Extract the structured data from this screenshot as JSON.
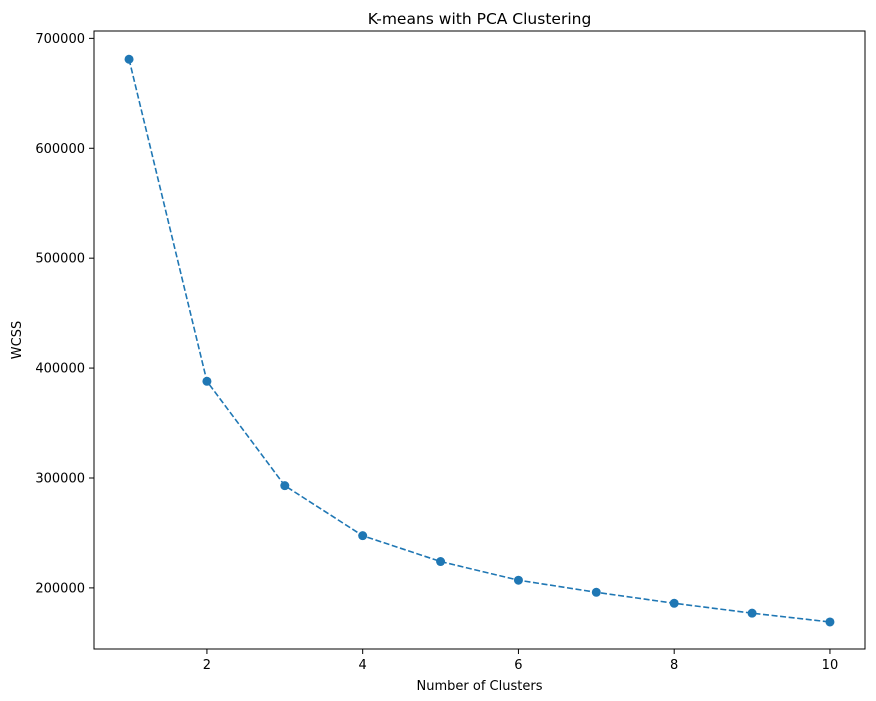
{
  "chart_data": {
    "type": "line",
    "title": "K-means with PCA Clustering",
    "xlabel": "Number of Clusters",
    "ylabel": "WCSS",
    "x": [
      1,
      2,
      3,
      4,
      5,
      6,
      7,
      8,
      9,
      10
    ],
    "series": [
      {
        "values": [
          681000,
          388000,
          293000,
          247500,
          224000,
          207000,
          196000,
          186000,
          177000,
          169000
        ],
        "color": "#1f77b4",
        "line_style": "dashed",
        "marker": "circle"
      }
    ],
    "xlim": [
      0.55,
      10.45
    ],
    "ylim": [
      144400,
      706700
    ],
    "xticks": [
      2,
      4,
      6,
      8,
      10
    ],
    "yticks": [
      200000,
      300000,
      400000,
      500000,
      600000,
      700000
    ],
    "grid": false,
    "legend": "none"
  }
}
